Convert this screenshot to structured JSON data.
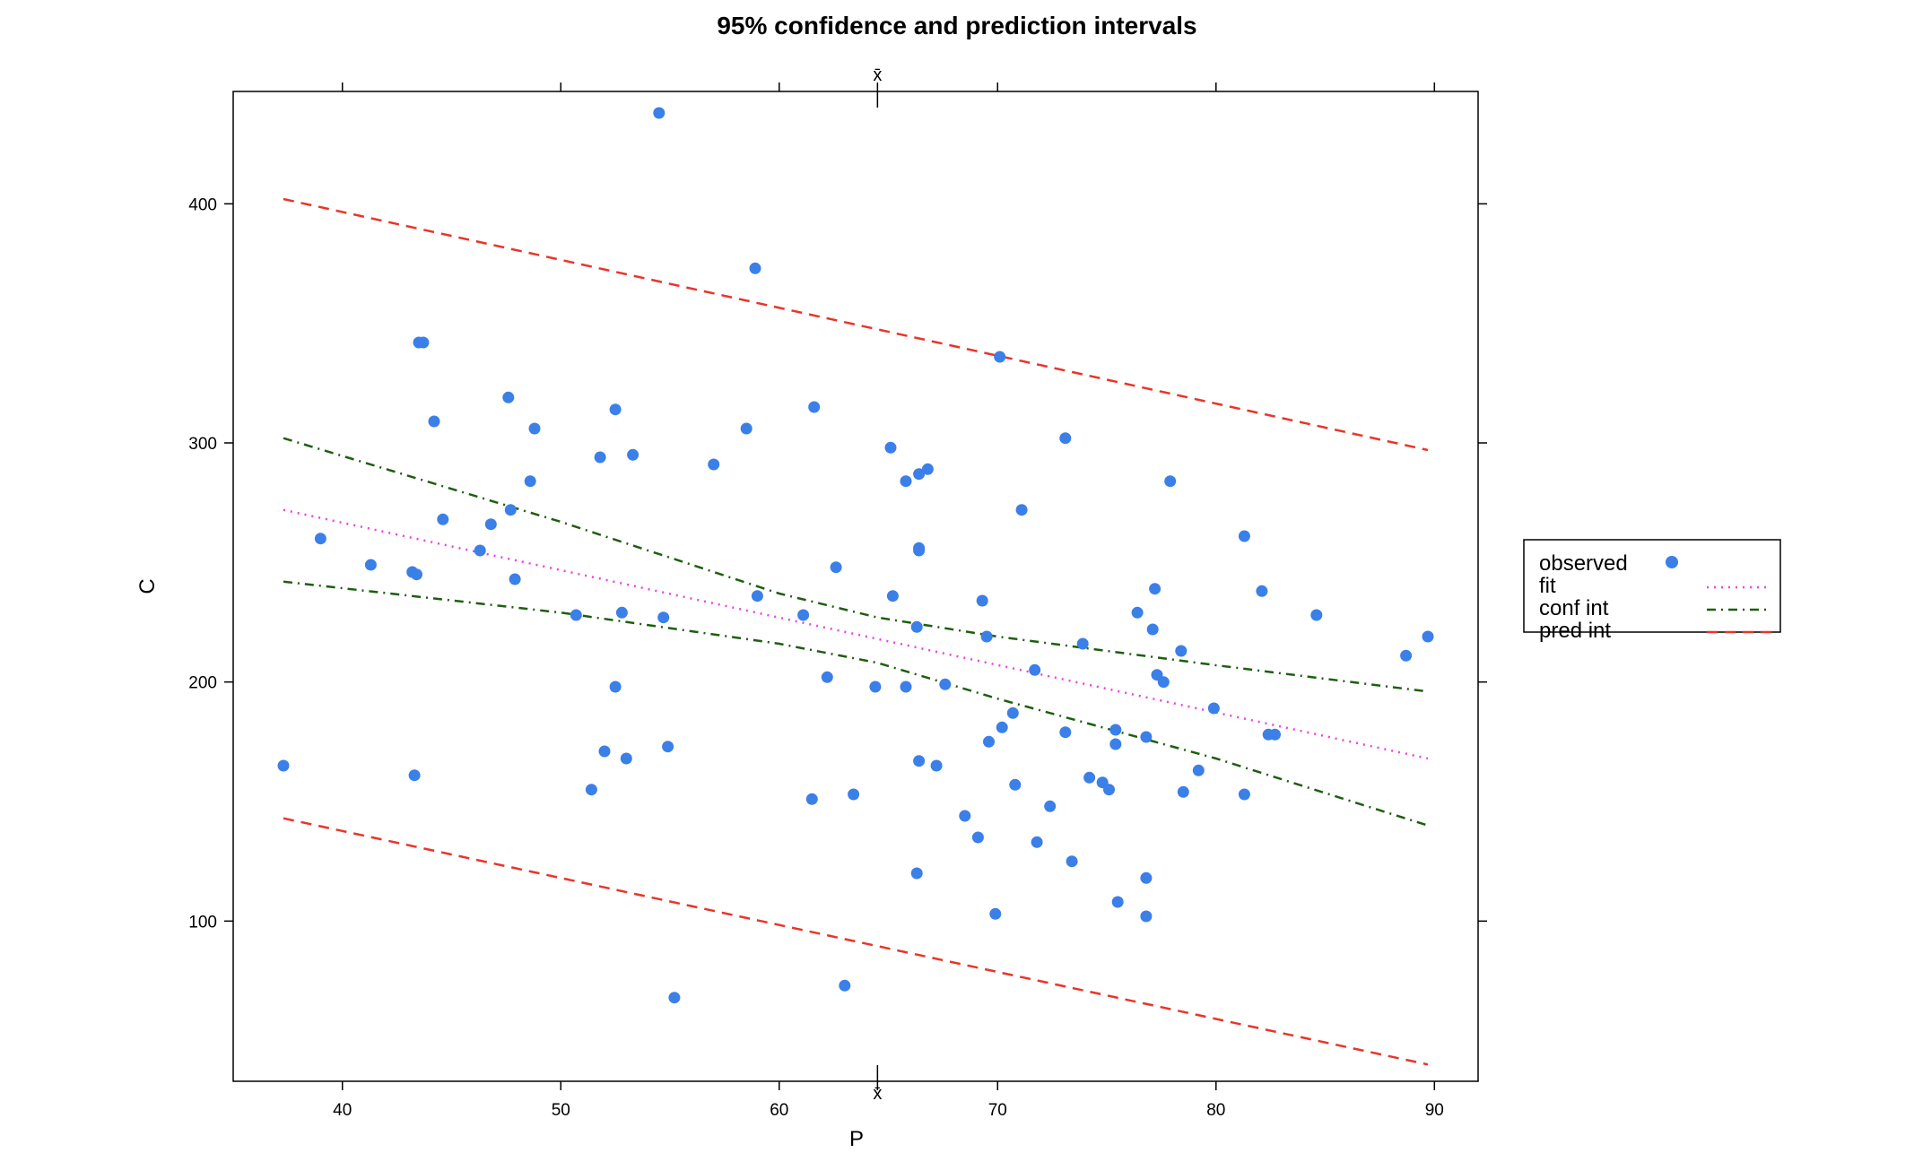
{
  "chart_data": {
    "type": "scatter",
    "title": "95% confidence and prediction intervals",
    "xlabel": "P",
    "ylabel": "C",
    "xlim": [
      35,
      92
    ],
    "ylim": [
      33,
      447
    ],
    "xticks": [
      40,
      50,
      60,
      70,
      80,
      90
    ],
    "yticks": [
      100,
      200,
      300,
      400
    ],
    "xbar_label": "x̄",
    "xbar_value": 64.5,
    "grid": false,
    "legend_position": "right",
    "legend": [
      {
        "label": "observed",
        "kind": "point",
        "color": "#3b7fe8"
      },
      {
        "label": "fit",
        "kind": "line",
        "color": "#ee3fe6",
        "dash": "dotted"
      },
      {
        "label": "conf int",
        "kind": "line",
        "color": "#1d5f0f",
        "dash": "dotdash"
      },
      {
        "label": "pred int",
        "kind": "line",
        "color": "#e8352a",
        "dash": "dashed"
      }
    ],
    "series": [
      {
        "name": "observed",
        "kind": "scatter",
        "color": "#3b7fe8",
        "points": [
          [
            37.3,
            165
          ],
          [
            39.0,
            260
          ],
          [
            41.3,
            249
          ],
          [
            43.2,
            246
          ],
          [
            43.4,
            245
          ],
          [
            43.3,
            161
          ],
          [
            43.5,
            342
          ],
          [
            43.7,
            342
          ],
          [
            44.2,
            309
          ],
          [
            44.6,
            268
          ],
          [
            46.3,
            255
          ],
          [
            46.8,
            266
          ],
          [
            47.6,
            319
          ],
          [
            47.7,
            272
          ],
          [
            47.9,
            243
          ],
          [
            48.6,
            284
          ],
          [
            48.8,
            306
          ],
          [
            50.7,
            228
          ],
          [
            51.4,
            155
          ],
          [
            51.8,
            294
          ],
          [
            52.0,
            171
          ],
          [
            52.5,
            314
          ],
          [
            52.5,
            198
          ],
          [
            52.8,
            229
          ],
          [
            53.0,
            168
          ],
          [
            53.3,
            295
          ],
          [
            54.5,
            438
          ],
          [
            54.7,
            227
          ],
          [
            54.9,
            173
          ],
          [
            55.2,
            68
          ],
          [
            57.0,
            291
          ],
          [
            58.5,
            306
          ],
          [
            58.9,
            373
          ],
          [
            59.0,
            236
          ],
          [
            61.1,
            228
          ],
          [
            61.5,
            151
          ],
          [
            61.6,
            315
          ],
          [
            62.2,
            202
          ],
          [
            62.6,
            248
          ],
          [
            63.0,
            73
          ],
          [
            63.4,
            153
          ],
          [
            64.4,
            198
          ],
          [
            65.1,
            298
          ],
          [
            65.2,
            236
          ],
          [
            65.8,
            284
          ],
          [
            65.8,
            198
          ],
          [
            66.3,
            223
          ],
          [
            66.4,
            287
          ],
          [
            66.4,
            256
          ],
          [
            66.4,
            255
          ],
          [
            66.4,
            167
          ],
          [
            66.3,
            120
          ],
          [
            66.8,
            289
          ],
          [
            67.2,
            165
          ],
          [
            67.6,
            199
          ],
          [
            68.5,
            144
          ],
          [
            69.1,
            135
          ],
          [
            69.3,
            234
          ],
          [
            69.5,
            219
          ],
          [
            69.6,
            175
          ],
          [
            69.9,
            103
          ],
          [
            70.1,
            336
          ],
          [
            70.2,
            181
          ],
          [
            70.7,
            187
          ],
          [
            70.8,
            157
          ],
          [
            71.1,
            272
          ],
          [
            71.7,
            205
          ],
          [
            71.8,
            133
          ],
          [
            72.4,
            148
          ],
          [
            73.1,
            302
          ],
          [
            73.1,
            179
          ],
          [
            73.4,
            125
          ],
          [
            73.9,
            216
          ],
          [
            74.2,
            160
          ],
          [
            74.8,
            158
          ],
          [
            75.1,
            155
          ],
          [
            75.4,
            180
          ],
          [
            75.4,
            174
          ],
          [
            75.5,
            108
          ],
          [
            76.4,
            229
          ],
          [
            76.8,
            177
          ],
          [
            76.8,
            118
          ],
          [
            76.8,
            102
          ],
          [
            77.1,
            222
          ],
          [
            77.2,
            239
          ],
          [
            77.3,
            203
          ],
          [
            77.6,
            200
          ],
          [
            77.9,
            284
          ],
          [
            78.4,
            213
          ],
          [
            78.5,
            154
          ],
          [
            79.2,
            163
          ],
          [
            79.9,
            189
          ],
          [
            81.3,
            261
          ],
          [
            81.3,
            153
          ],
          [
            82.1,
            238
          ],
          [
            82.4,
            178
          ],
          [
            82.7,
            178
          ],
          [
            84.6,
            228
          ],
          [
            88.7,
            211
          ],
          [
            89.7,
            219
          ]
        ]
      },
      {
        "name": "fit",
        "kind": "line",
        "color": "#ee3fe6",
        "dash": "dotted",
        "points": [
          [
            37.3,
            272
          ],
          [
            89.7,
            168
          ]
        ]
      },
      {
        "name": "conf int",
        "kind": "line",
        "color": "#1d5f0f",
        "dash": "dotdash",
        "points": [
          [
            37.3,
            302
          ],
          [
            50,
            267
          ],
          [
            60,
            237
          ],
          [
            64.5,
            227
          ],
          [
            70,
            219
          ],
          [
            80,
            207
          ],
          [
            89.7,
            196
          ]
        ]
      },
      {
        "name": "conf int",
        "kind": "line",
        "color": "#1d5f0f",
        "dash": "dotdash",
        "points": [
          [
            37.3,
            242
          ],
          [
            50,
            229
          ],
          [
            60,
            216
          ],
          [
            64.5,
            208
          ],
          [
            70,
            193
          ],
          [
            80,
            168
          ],
          [
            89.7,
            140
          ]
        ]
      },
      {
        "name": "pred int",
        "kind": "line",
        "color": "#e8352a",
        "dash": "dashed",
        "points": [
          [
            37.3,
            402
          ],
          [
            89.7,
            297
          ]
        ]
      },
      {
        "name": "pred int",
        "kind": "line",
        "color": "#e8352a",
        "dash": "dashed",
        "points": [
          [
            37.3,
            143
          ],
          [
            89.7,
            40
          ]
        ]
      }
    ]
  }
}
